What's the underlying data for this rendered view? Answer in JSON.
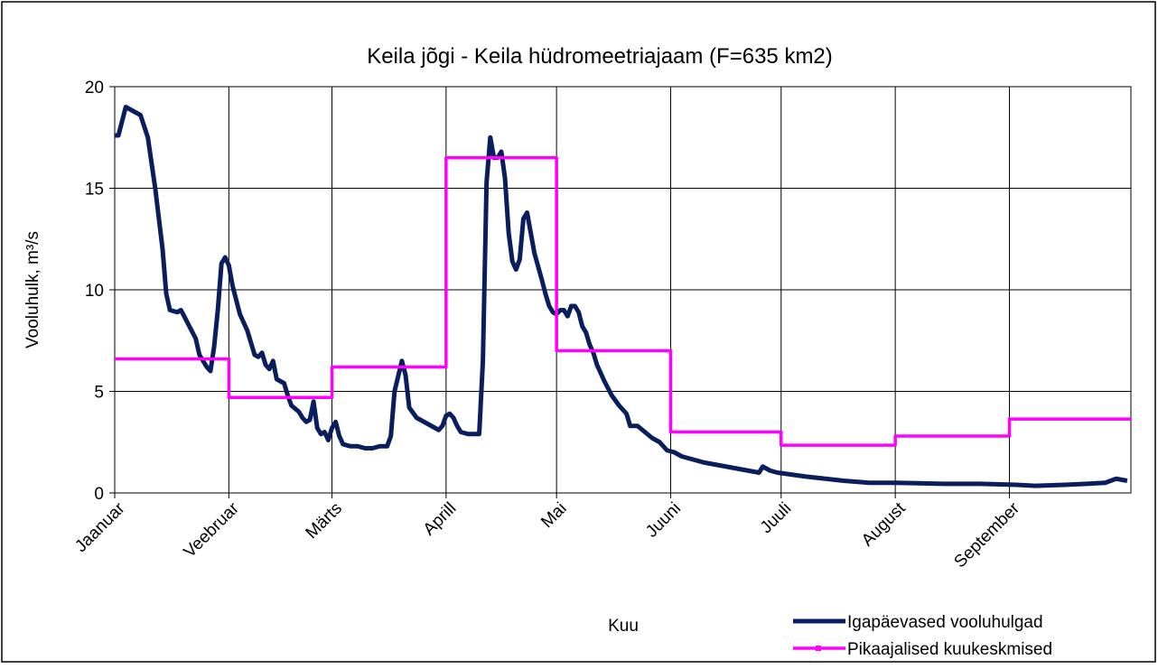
{
  "chart_data": {
    "type": "line",
    "title": "Keila jõgi - Keila hüdromeetriajaam (F=635 km2)",
    "y_label": "Vooluhulk, m³/s",
    "x_label": "Kuu",
    "xlim": [
      0,
      276
    ],
    "xticks": [
      {
        "value": 0,
        "label": "Jaanuar"
      },
      {
        "value": 31,
        "label": "Veebruar"
      },
      {
        "value": 59,
        "label": "Märts"
      },
      {
        "value": 90,
        "label": "Aprill"
      },
      {
        "value": 120,
        "label": "Mai"
      },
      {
        "value": 151,
        "label": "Juuni"
      },
      {
        "value": 181,
        "label": "Juuli"
      },
      {
        "value": 212,
        "label": "August"
      },
      {
        "value": 243,
        "label": "September"
      }
    ],
    "ylim": [
      0,
      20
    ],
    "yticks": [
      0,
      5,
      10,
      15,
      20
    ],
    "grid": true,
    "legend": "bottom-right",
    "series": [
      {
        "name": "Igapäevased vooluhulgad",
        "color": "#0a1e5e",
        "x": [
          0,
          1,
          3,
          5,
          7,
          9,
          11,
          13,
          14,
          15,
          17,
          18,
          20,
          22,
          23,
          25,
          26,
          27,
          28,
          29,
          30,
          31,
          32,
          34,
          36,
          37,
          38,
          39,
          40,
          41,
          42,
          43,
          44,
          46,
          47,
          48,
          50,
          51,
          52,
          53,
          54,
          55,
          56,
          57,
          58,
          59,
          60,
          61,
          62,
          64,
          66,
          68,
          70,
          72,
          74,
          75,
          76,
          78,
          79,
          80,
          82,
          84,
          86,
          88,
          89,
          90,
          91,
          92,
          93,
          94,
          96,
          97,
          98,
          99,
          100,
          101,
          102,
          103,
          104,
          105,
          106,
          107,
          108,
          109,
          110,
          111,
          112,
          113,
          114,
          116,
          117,
          118,
          119,
          120,
          121,
          122,
          123,
          124,
          125,
          126,
          127,
          128,
          129,
          130,
          131,
          133,
          135,
          137,
          139,
          140,
          142,
          144,
          146,
          148,
          150,
          152,
          154,
          156,
          158,
          160,
          163,
          166,
          169,
          172,
          175,
          176,
          178,
          180,
          184,
          188,
          193,
          198,
          205,
          212,
          225,
          235,
          245,
          250,
          258,
          264,
          269,
          272,
          275
        ],
        "values": [
          17.6,
          17.6,
          19.0,
          18.8,
          18.6,
          17.5,
          15,
          12,
          9.8,
          9.0,
          8.9,
          9.0,
          8.3,
          7.6,
          6.8,
          6.2,
          6.0,
          7.2,
          9.0,
          11.3,
          11.6,
          11.2,
          10.2,
          8.8,
          8.0,
          7.4,
          6.8,
          6.7,
          6.9,
          6.3,
          6.1,
          6.5,
          5.6,
          5.4,
          4.8,
          4.3,
          4.0,
          3.7,
          3.5,
          3.6,
          4.5,
          3.2,
          2.9,
          3.0,
          2.6,
          3.2,
          3.5,
          2.8,
          2.4,
          2.3,
          2.3,
          2.2,
          2.2,
          2.3,
          2.3,
          2.8,
          5.0,
          6.5,
          5.8,
          4.2,
          3.7,
          3.5,
          3.3,
          3.1,
          3.3,
          3.8,
          3.9,
          3.7,
          3.3,
          3.0,
          2.9,
          2.9,
          2.9,
          2.9,
          6.5,
          15.3,
          17.5,
          16.5,
          16.5,
          16.8,
          15.5,
          12.8,
          11.4,
          11.0,
          11.5,
          13.5,
          13.8,
          12.8,
          11.8,
          10.5,
          9.8,
          9.2,
          8.9,
          8.8,
          9.0,
          9.0,
          8.7,
          9.2,
          9.2,
          8.9,
          8.2,
          7.9,
          7.3,
          6.9,
          6.3,
          5.5,
          4.8,
          4.3,
          3.9,
          3.3,
          3.3,
          3.0,
          2.7,
          2.5,
          2.1,
          2.0,
          1.8,
          1.7,
          1.6,
          1.5,
          1.4,
          1.3,
          1.2,
          1.1,
          1.0,
          1.3,
          1.1,
          1.0,
          0.9,
          0.8,
          0.7,
          0.6,
          0.5,
          0.5,
          0.45,
          0.45,
          0.4,
          0.35,
          0.4,
          0.45,
          0.5,
          0.7,
          0.6
        ]
      },
      {
        "name": "Pikaajalised kuukeskmised",
        "color": "#ff00ff",
        "x": [
          0,
          31,
          31,
          59,
          59,
          90,
          90,
          120,
          120,
          151,
          151,
          181,
          181,
          212,
          212,
          243,
          243,
          276
        ],
        "values": [
          6.6,
          6.6,
          4.7,
          4.7,
          6.2,
          6.2,
          16.5,
          16.5,
          7.0,
          7.0,
          3.0,
          3.0,
          2.35,
          2.35,
          2.8,
          2.8,
          3.64,
          3.64
        ]
      }
    ]
  }
}
